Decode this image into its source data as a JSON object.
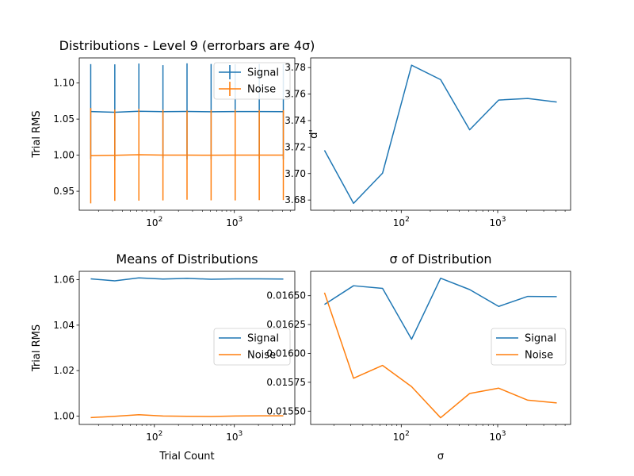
{
  "chart_data": [
    {
      "id": "distributions",
      "type": "line",
      "title": "Distributions - Level 9 (errorbars are 4σ)",
      "xlabel": "",
      "ylabel": "Trial RMS",
      "xscale": "log",
      "xlim": [
        11.5,
        5700
      ],
      "ylim": [
        0.9237,
        1.1348
      ],
      "x": [
        16,
        32,
        64,
        128,
        256,
        512,
        1024,
        2048,
        4096
      ],
      "yticks": [
        0.95,
        1.0,
        1.05,
        1.1
      ],
      "ytick_labels": [
        "0.95",
        "1.00",
        "1.05",
        "1.10"
      ],
      "xticks": [
        100,
        1000
      ],
      "xtick_labels": [
        "10",
        "10"
      ],
      "xtick_exps": [
        "2",
        "3"
      ],
      "legend": "top-right",
      "series": [
        {
          "name": "Signal",
          "color": "#1f77b4",
          "values": [
            1.0605,
            1.0595,
            1.0608,
            1.0603,
            1.0606,
            1.0602,
            1.0604,
            1.0604,
            1.0603
          ],
          "err": [
            0.0657,
            0.0664,
            0.0662,
            0.0645,
            0.0667,
            0.0662,
            0.0656,
            0.066,
            0.066
          ]
        },
        {
          "name": "Noise",
          "color": "#ff7f0e",
          "values": [
            0.9993,
            0.9999,
            1.0006,
            1.0001,
            1.0001,
            1.0,
            1.0001,
            1.0001,
            1.0001
          ],
          "err": [
            0.0661,
            0.0632,
            0.0636,
            0.0628,
            0.0618,
            0.0626,
            0.0628,
            0.0624,
            0.0623
          ]
        }
      ]
    },
    {
      "id": "dprime",
      "type": "line",
      "title": "",
      "xlabel": "",
      "ylabel": "d'",
      "xscale": "log",
      "xlim": [
        11.5,
        5700
      ],
      "ylim": [
        3.6723,
        3.7873
      ],
      "x": [
        16,
        32,
        64,
        128,
        256,
        512,
        1024,
        2048,
        4096
      ],
      "yticks": [
        3.68,
        3.7,
        3.72,
        3.74,
        3.76,
        3.78
      ],
      "ytick_labels": [
        "3.68",
        "3.70",
        "3.72",
        "3.74",
        "3.76",
        "3.78"
      ],
      "xticks": [
        100,
        1000
      ],
      "xtick_labels": [
        "10",
        "10"
      ],
      "xtick_exps": [
        "2",
        "3"
      ],
      "series": [
        {
          "name": "",
          "color": "#1f77b4",
          "values": [
            3.7175,
            3.6775,
            3.7003,
            3.7818,
            3.7709,
            3.733,
            3.7555,
            3.7567,
            3.754
          ]
        }
      ]
    },
    {
      "id": "means",
      "type": "line",
      "title": "Means of Distributions",
      "xlabel": "Trial Count",
      "ylabel": "Trial RMS",
      "xscale": "log",
      "xlim": [
        11.5,
        5700
      ],
      "ylim": [
        0.9963,
        1.0637
      ],
      "x": [
        16,
        32,
        64,
        128,
        256,
        512,
        1024,
        2048,
        4096
      ],
      "yticks": [
        1.0,
        1.02,
        1.04,
        1.06
      ],
      "ytick_labels": [
        "1.00",
        "1.02",
        "1.04",
        "1.06"
      ],
      "xticks": [
        100,
        1000
      ],
      "xtick_labels": [
        "10",
        "10"
      ],
      "xtick_exps": [
        "2",
        "3"
      ],
      "legend": "center-right",
      "series": [
        {
          "name": "Signal",
          "color": "#1f77b4",
          "values": [
            1.0604,
            1.0595,
            1.0608,
            1.0603,
            1.0606,
            1.0602,
            1.0604,
            1.0604,
            1.0603
          ]
        },
        {
          "name": "Noise",
          "color": "#ff7f0e",
          "values": [
            0.9993,
            0.9999,
            1.0006,
            1.0,
            0.9999,
            0.9998,
            1.0,
            1.0001,
            1.0001
          ]
        }
      ]
    },
    {
      "id": "sigma",
      "type": "line",
      "title": "σ of Distribution",
      "xlabel": "σ",
      "ylabel": "",
      "xscale": "log",
      "xlim": [
        11.5,
        5700
      ],
      "ylim": [
        0.015385,
        0.016711
      ],
      "x": [
        16,
        32,
        64,
        128,
        256,
        512,
        1024,
        2048,
        4096
      ],
      "yticks": [
        0.0155,
        0.01575,
        0.016,
        0.01625,
        0.0165
      ],
      "ytick_labels": [
        "0.01550",
        "0.01575",
        "0.01600",
        "0.01625",
        "0.01650"
      ],
      "xticks": [
        100,
        1000
      ],
      "xtick_labels": [
        "10",
        "10"
      ],
      "xtick_exps": [
        "2",
        "3"
      ],
      "legend": "center-right",
      "series": [
        {
          "name": "Signal",
          "color": "#1f77b4",
          "values": [
            0.016424,
            0.016586,
            0.016563,
            0.016123,
            0.016651,
            0.016553,
            0.016407,
            0.016494,
            0.016492
          ]
        },
        {
          "name": "Noise",
          "color": "#ff7f0e",
          "values": [
            0.016526,
            0.015785,
            0.015896,
            0.015712,
            0.015443,
            0.015653,
            0.015699,
            0.015595,
            0.015571
          ]
        }
      ]
    }
  ]
}
